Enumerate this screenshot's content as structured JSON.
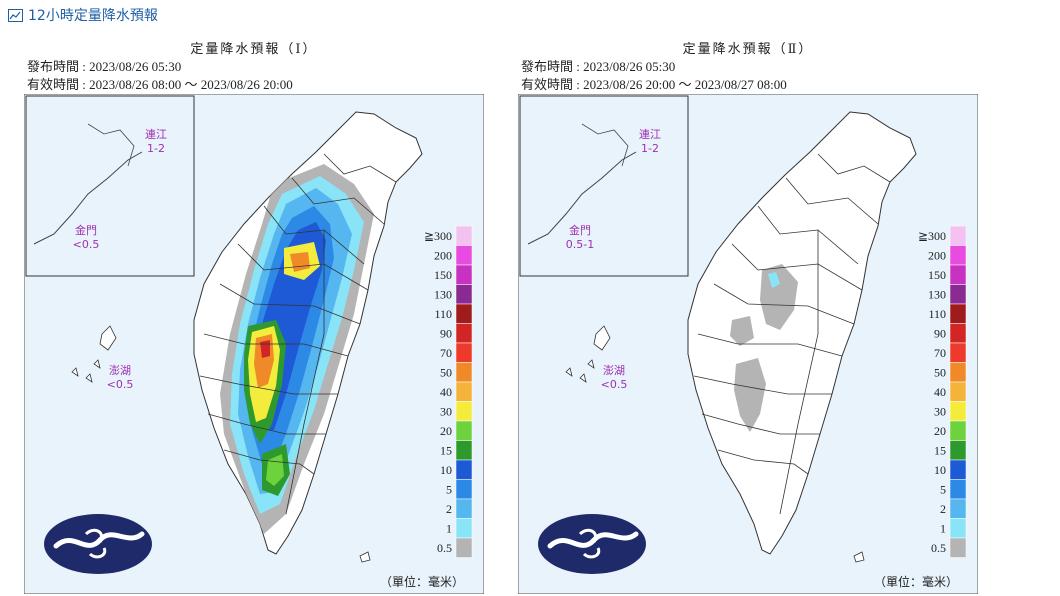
{
  "header": {
    "title": "12小時定量降水預報"
  },
  "panels": [
    {
      "title": "定量降水預報（Ⅰ）",
      "issue_label": "發布時間 : 2023/08/26 05:30",
      "valid_label": "有效時間 : 2023/08/26 08:00 ～ 2023/08/26 20:00",
      "islands": {
        "matsu_name": "連江",
        "matsu_value": "1-2",
        "kinmen_name": "金門",
        "kinmen_value": "<0.5",
        "penghu_name": "澎湖",
        "penghu_value": "<0.5"
      },
      "unit": "（單位：毫米）"
    },
    {
      "title": "定量降水預報（Ⅱ）",
      "issue_label": "發布時間 : 2023/08/26 05:30",
      "valid_label": "有效時間 : 2023/08/26 20:00 ～ 2023/08/27 08:00",
      "islands": {
        "matsu_name": "連江",
        "matsu_value": "1-2",
        "kinmen_name": "金門",
        "kinmen_value": "0.5-1",
        "penghu_name": "澎湖",
        "penghu_value": "<0.5"
      },
      "unit": "（單位：毫米）"
    }
  ],
  "legend": {
    "labels": [
      "≧300",
      "200",
      "150",
      "130",
      "110",
      "90",
      "70",
      "50",
      "40",
      "30",
      "20",
      "15",
      "10",
      "5",
      "2",
      "1",
      "0.5"
    ],
    "colors": [
      "#f4c2f0",
      "#e84be0",
      "#c832c0",
      "#8a2a92",
      "#a01c1c",
      "#d22626",
      "#ee3a2a",
      "#f08a28",
      "#f4b43c",
      "#f4ec3c",
      "#6ed23c",
      "#2e9a2e",
      "#1e5ad6",
      "#2c8ae6",
      "#56b6f0",
      "#8ae4f8",
      "#b4b4b4"
    ]
  },
  "colors": {
    "sea": "#e8f3fb",
    "land": "#ffffff",
    "border": "#333333",
    "title_blue": "#1e5fa6",
    "island_label": "#a030b0",
    "logo_navy": "#1f2a6b"
  },
  "icons": [
    "map-icon"
  ]
}
